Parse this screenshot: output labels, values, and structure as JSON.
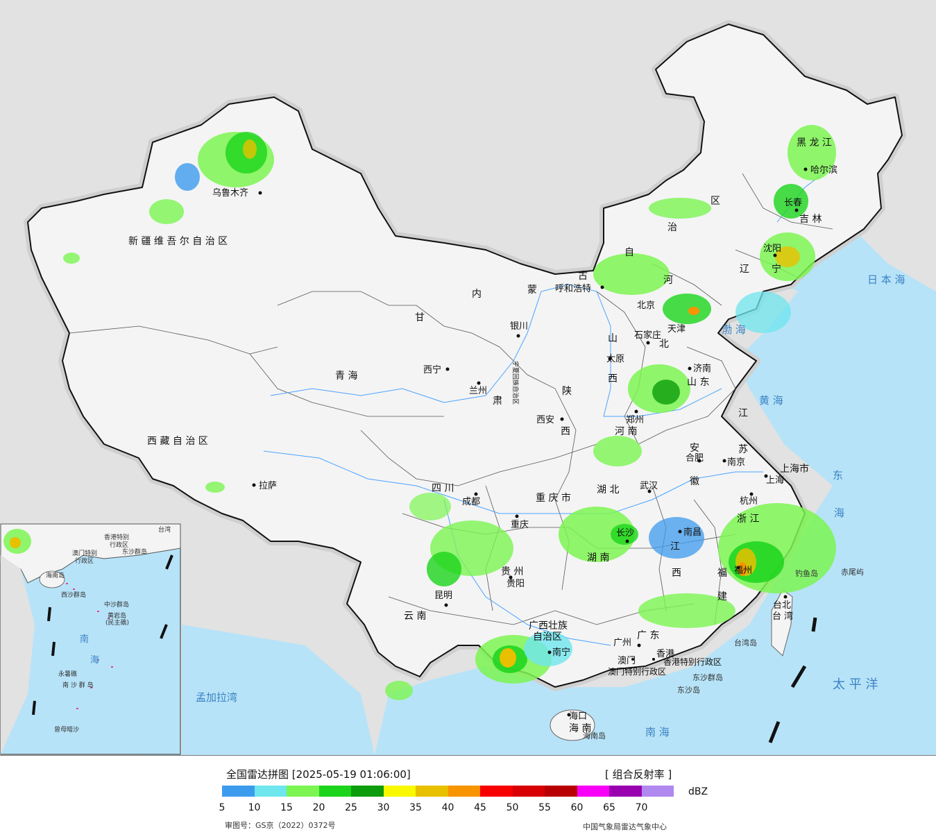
{
  "legend": {
    "title": "全国雷达拼图 [2025-05-19 01:06:00]",
    "product": "[ 组合反射率 ]",
    "unit": "dBZ",
    "colors": [
      "#3d9bee",
      "#6ee6ee",
      "#7cf552",
      "#1cd41c",
      "#0c9c0c",
      "#f8f800",
      "#e8c000",
      "#f89400",
      "#f80000",
      "#d80000",
      "#b80000",
      "#f800f8",
      "#9800b0",
      "#b088f0"
    ],
    "ticks": [
      "5",
      "10",
      "15",
      "20",
      "25",
      "30",
      "35",
      "40",
      "45",
      "50",
      "55",
      "60",
      "65",
      "70"
    ],
    "approval": "审图号：GS京（2022）0372号",
    "credit": "中国气象局雷达气象中心"
  },
  "regions": [
    {
      "name": "新 疆 维 吾 尔 自 治 区"
    },
    {
      "name": "西 藏 自 治 区"
    },
    {
      "name": "青 海"
    },
    {
      "name": "甘"
    },
    {
      "name": "肃"
    },
    {
      "name": "内"
    },
    {
      "name": "蒙"
    },
    {
      "name": "古"
    },
    {
      "name": "自"
    },
    {
      "name": "治"
    },
    {
      "name": "区"
    },
    {
      "name": "黑 龙 江"
    },
    {
      "name": "吉 林"
    },
    {
      "name": "辽"
    },
    {
      "name": "宁"
    },
    {
      "name": "河"
    },
    {
      "name": "北"
    },
    {
      "name": "山"
    },
    {
      "name": "西"
    },
    {
      "name": "山 东"
    },
    {
      "name": "河 南"
    },
    {
      "name": "陕"
    },
    {
      "name": "西"
    },
    {
      "name": "四 川"
    },
    {
      "name": "重 庆 市"
    },
    {
      "name": "湖 北"
    },
    {
      "name": "湖 南"
    },
    {
      "name": "江"
    },
    {
      "name": "苏"
    },
    {
      "name": "安"
    },
    {
      "name": "徽"
    },
    {
      "name": "上海市"
    },
    {
      "name": "浙 江"
    },
    {
      "name": "江"
    },
    {
      "name": "西"
    },
    {
      "name": "福"
    },
    {
      "name": "建"
    },
    {
      "name": "贵 州"
    },
    {
      "name": "云 南"
    },
    {
      "name": "广西壮族"
    },
    {
      "name": "自治区"
    },
    {
      "name": "广 东"
    },
    {
      "name": "海 南"
    },
    {
      "name": "台 湾"
    },
    {
      "name": "宁夏回族自治区"
    },
    {
      "name": "北京"
    },
    {
      "name": "天津"
    }
  ],
  "cities": [
    {
      "name": "乌鲁木齐"
    },
    {
      "name": "拉萨"
    },
    {
      "name": "西宁"
    },
    {
      "name": "兰州"
    },
    {
      "name": "银川"
    },
    {
      "name": "呼和浩特"
    },
    {
      "name": "哈尔滨"
    },
    {
      "name": "长春"
    },
    {
      "name": "沈阳"
    },
    {
      "name": "石家庄"
    },
    {
      "name": "太原"
    },
    {
      "name": "济南"
    },
    {
      "name": "郑州"
    },
    {
      "name": "西安"
    },
    {
      "name": "成都"
    },
    {
      "name": "重庆"
    },
    {
      "name": "武汉"
    },
    {
      "name": "合肥"
    },
    {
      "name": "南京"
    },
    {
      "name": "上海"
    },
    {
      "name": "杭州"
    },
    {
      "name": "南昌"
    },
    {
      "name": "长沙"
    },
    {
      "name": "福州"
    },
    {
      "name": "贵阳"
    },
    {
      "name": "昆明"
    },
    {
      "name": "南宁"
    },
    {
      "name": "广州"
    },
    {
      "name": "澳门"
    },
    {
      "name": "香港"
    },
    {
      "name": "海口"
    },
    {
      "name": "台北"
    }
  ],
  "seas": [
    {
      "name": "日 本 海"
    },
    {
      "name": "渤 海"
    },
    {
      "name": "黄 海"
    },
    {
      "name": "东"
    },
    {
      "name": "海"
    },
    {
      "name": "太 平 洋"
    },
    {
      "name": "南 海"
    },
    {
      "name": "孟加拉湾"
    }
  ],
  "islands": [
    {
      "name": "钓鱼岛"
    },
    {
      "name": "赤尾屿"
    },
    {
      "name": "台湾岛"
    },
    {
      "name": "东沙群岛"
    },
    {
      "name": "东沙岛"
    },
    {
      "name": "海南岛"
    }
  ],
  "special_regions": [
    {
      "name": "香港特别行政区"
    },
    {
      "name": "澳门特别行政区"
    }
  ],
  "inset": {
    "labels": [
      {
        "name": "南"
      },
      {
        "name": "海"
      },
      {
        "name": "中沙群岛"
      },
      {
        "name": "黄岩岛"
      },
      {
        "name": "(民主礁)"
      },
      {
        "name": "西沙群岛"
      },
      {
        "name": "永暑礁"
      },
      {
        "name": "南 沙 群 岛"
      },
      {
        "name": "曾母暗沙"
      },
      {
        "name": "香港特别"
      },
      {
        "name": "行政区"
      },
      {
        "name": "澳门特别"
      },
      {
        "name": "行政区"
      },
      {
        "name": "东沙群岛"
      },
      {
        "name": "海南岛"
      },
      {
        "name": "台湾"
      }
    ]
  }
}
